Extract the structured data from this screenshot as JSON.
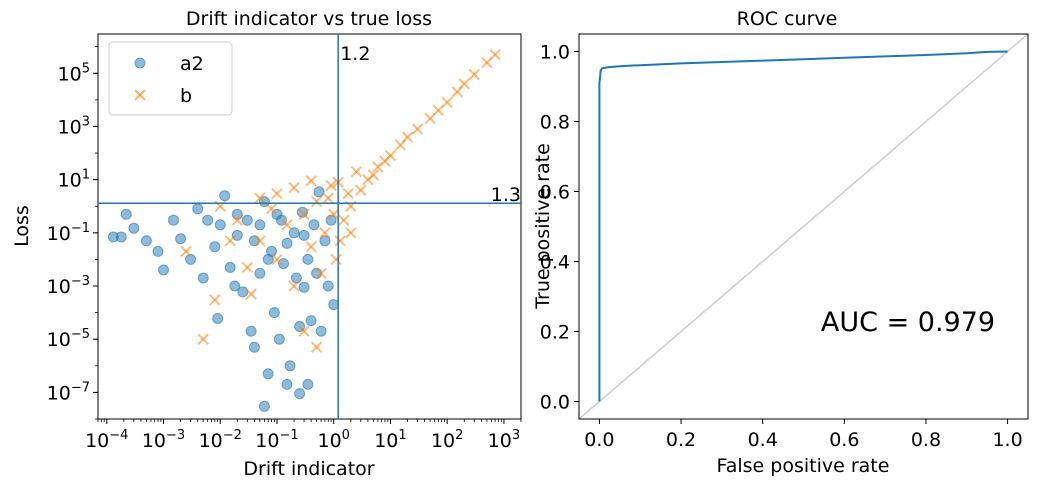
{
  "chart_data": [
    {
      "type": "scatter",
      "title": "Drift indicator vs true loss",
      "xlabel": "Drift indicator",
      "ylabel": "Loss",
      "xscale": "log",
      "yscale": "log",
      "xlim": [
        7e-05,
        2000
      ],
      "ylim": [
        1e-08,
        3000000
      ],
      "xticks": [
        {
          "value": 0.0001,
          "base": "10",
          "exp": "−4"
        },
        {
          "value": 0.001,
          "base": "10",
          "exp": "−3"
        },
        {
          "value": 0.01,
          "base": "10",
          "exp": "−2"
        },
        {
          "value": 0.1,
          "base": "10",
          "exp": "−1"
        },
        {
          "value": 1,
          "base": "10",
          "exp": "0"
        },
        {
          "value": 10,
          "base": "10",
          "exp": "1"
        },
        {
          "value": 100,
          "base": "10",
          "exp": "2"
        },
        {
          "value": 1000,
          "base": "10",
          "exp": "3"
        }
      ],
      "yticks": [
        {
          "value": 1e-07,
          "base": "10",
          "exp": "−7"
        },
        {
          "value": 1e-05,
          "base": "10",
          "exp": "−5"
        },
        {
          "value": 0.001,
          "base": "10",
          "exp": "−3"
        },
        {
          "value": 0.1,
          "base": "10",
          "exp": "−1"
        },
        {
          "value": 10,
          "base": "10",
          "exp": "1"
        },
        {
          "value": 1000,
          "base": "10",
          "exp": "3"
        },
        {
          "value": 100000,
          "base": "10",
          "exp": "5"
        }
      ],
      "legend_position": "upper-left",
      "threshold_lines": [
        {
          "orientation": "vertical",
          "value": 1.2,
          "label": "1.2"
        },
        {
          "orientation": "horizontal",
          "value": 1.3,
          "label": "1.3"
        }
      ],
      "series": [
        {
          "name": "a2",
          "marker": "circle",
          "color": "#1f77b4",
          "points": [
            [
              0.00013,
              0.07
            ],
            [
              0.00018,
              0.07
            ],
            [
              0.00022,
              0.5
            ],
            [
              0.0003,
              0.15
            ],
            [
              0.0005,
              0.05
            ],
            [
              0.0008,
              0.02
            ],
            [
              0.001,
              0.004
            ],
            [
              0.0015,
              0.3
            ],
            [
              0.002,
              0.06
            ],
            [
              0.003,
              0.01
            ],
            [
              0.004,
              0.8
            ],
            [
              0.005,
              0.002
            ],
            [
              0.006,
              0.3
            ],
            [
              0.008,
              0.03
            ],
            [
              0.009,
              6e-05
            ],
            [
              0.01,
              0.2
            ],
            [
              0.012,
              2.5
            ],
            [
              0.015,
              0.005
            ],
            [
              0.018,
              0.001
            ],
            [
              0.02,
              0.08
            ],
            [
              0.025,
              0.0006
            ],
            [
              0.03,
              0.3
            ],
            [
              0.035,
              2e-05
            ],
            [
              0.04,
              0.05
            ],
            [
              0.05,
              0.003
            ],
            [
              0.06,
              1.5
            ],
            [
              0.07,
              5e-07
            ],
            [
              0.08,
              0.02
            ],
            [
              0.09,
              0.0001
            ],
            [
              0.1,
              0.5
            ],
            [
              0.11,
              1e-05
            ],
            [
              0.13,
              0.007
            ],
            [
              0.15,
              0.04
            ],
            [
              0.17,
              1e-06
            ],
            [
              0.2,
              0.1
            ],
            [
              0.22,
              0.002
            ],
            [
              0.25,
              3e-05
            ],
            [
              0.28,
              0.6
            ],
            [
              0.3,
              0.0009
            ],
            [
              0.35,
              0.01
            ],
            [
              0.4,
              5e-05
            ],
            [
              0.45,
              0.2
            ],
            [
              0.5,
              0.003
            ],
            [
              0.55,
              3.5
            ],
            [
              0.6,
              2e-05
            ],
            [
              0.7,
              0.05
            ],
            [
              0.8,
              0.001
            ],
            [
              0.9,
              0.3
            ],
            [
              1.0,
              0.0002
            ],
            [
              0.02,
              0.5
            ],
            [
              0.05,
              0.2
            ],
            [
              0.07,
              0.01
            ],
            [
              0.12,
              0.3
            ],
            [
              0.3,
              0.08
            ],
            [
              0.04,
              5e-06
            ],
            [
              0.06,
              3e-08
            ],
            [
              0.35,
              2e-07
            ],
            [
              0.25,
              9e-08
            ],
            [
              0.15,
              2e-07
            ]
          ]
        },
        {
          "name": "b",
          "marker": "x",
          "color": "#ff7f0e",
          "points": [
            [
              0.0025,
              0.02
            ],
            [
              0.005,
              1e-05
            ],
            [
              0.008,
              0.0003
            ],
            [
              0.02,
              0.3
            ],
            [
              0.03,
              0.005
            ],
            [
              0.05,
              0.05
            ],
            [
              0.08,
              0.8
            ],
            [
              0.1,
              0.01
            ],
            [
              0.15,
              0.2
            ],
            [
              0.2,
              0.001
            ],
            [
              0.3,
              0.5
            ],
            [
              0.4,
              0.03
            ],
            [
              0.5,
              1.5
            ],
            [
              0.6,
              0.003
            ],
            [
              0.7,
              0.1
            ],
            [
              0.8,
              2.0
            ],
            [
              0.5,
              5e-06
            ],
            [
              0.3,
              2e-05
            ],
            [
              1.0,
              0.5
            ],
            [
              1.5,
              0.3
            ],
            [
              2.0,
              1.0
            ],
            [
              3.0,
              4.0
            ],
            [
              4.0,
              10
            ],
            [
              5.0,
              15
            ],
            [
              6.0,
              30
            ],
            [
              8.0,
              50
            ],
            [
              10,
              80
            ],
            [
              15,
              200
            ],
            [
              20,
              400
            ],
            [
              30,
              800
            ],
            [
              50,
              2000
            ],
            [
              70,
              4000
            ],
            [
              100,
              8000
            ],
            [
              150,
              20000
            ],
            [
              200,
              40000
            ],
            [
              300,
              90000
            ],
            [
              500,
              250000
            ],
            [
              700,
              500000
            ],
            [
              1.2,
              8.0
            ],
            [
              2.5,
              20
            ],
            [
              1.8,
              3.0
            ],
            [
              0.9,
              6.0
            ],
            [
              0.4,
              9.0
            ],
            [
              0.2,
              5.0
            ],
            [
              0.1,
              3.0
            ],
            [
              0.05,
              2.0
            ],
            [
              1.3,
              0.05
            ],
            [
              1.1,
              0.01
            ],
            [
              2.0,
              0.1
            ],
            [
              0.01,
              1.0
            ],
            [
              0.015,
              0.05
            ],
            [
              0.035,
              0.0005
            ]
          ]
        }
      ]
    },
    {
      "type": "line",
      "title": "ROC curve",
      "xlabel": "False positive rate",
      "ylabel": "True positive rate",
      "xlim": [
        -0.05,
        1.05
      ],
      "ylim": [
        -0.05,
        1.05
      ],
      "xticks": [
        "0.0",
        "0.2",
        "0.4",
        "0.6",
        "0.8",
        "1.0"
      ],
      "yticks": [
        "0.0",
        "0.2",
        "0.4",
        "0.6",
        "0.8",
        "1.0"
      ],
      "annotation": "AUC = 0.979",
      "series": [
        {
          "name": "",
          "color": "#1f77b4",
          "x": [
            0.0,
            0.0,
            0.002,
            0.003,
            0.005,
            0.007,
            0.01,
            0.02,
            0.05,
            0.1,
            0.2,
            0.3,
            0.4,
            0.5,
            0.6,
            0.7,
            0.8,
            0.9,
            0.95,
            1.0
          ],
          "y": [
            0.0,
            0.91,
            0.93,
            0.945,
            0.95,
            0.952,
            0.953,
            0.955,
            0.958,
            0.961,
            0.966,
            0.97,
            0.974,
            0.978,
            0.982,
            0.986,
            0.99,
            0.995,
            0.999,
            1.0
          ]
        },
        {
          "name": "",
          "color": "#cccccc",
          "x": [
            -0.05,
            1.05
          ],
          "y": [
            -0.05,
            1.05
          ]
        }
      ]
    }
  ]
}
